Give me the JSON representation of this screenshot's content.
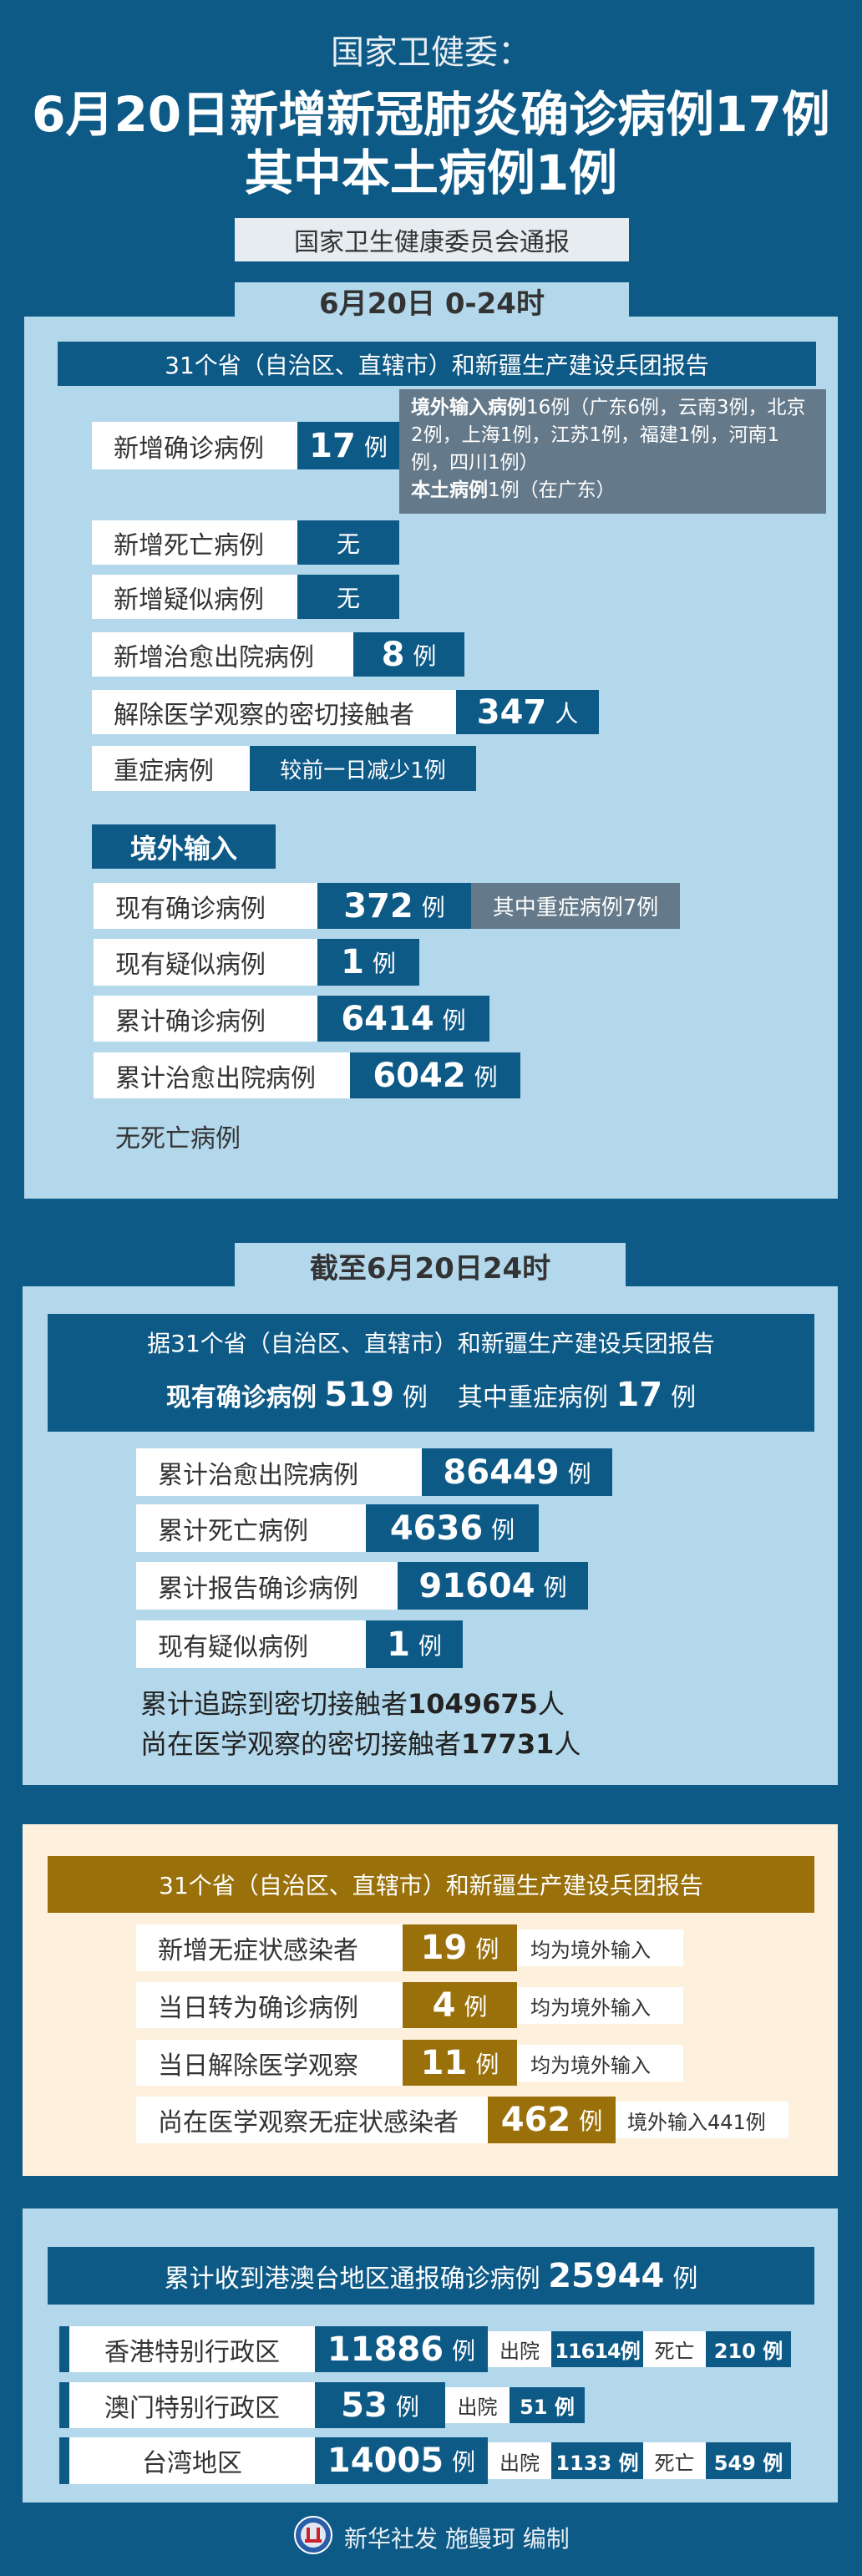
{
  "header": {
    "kicker": "国家卫健委：",
    "title_line1": "6月20日新增新冠肺炎确诊病例17例",
    "title_line2": "其中本土病例1例",
    "source": "国家卫生健康委员会通报"
  },
  "section1": {
    "tab": "6月20日  0-24时",
    "report_header": "31个省（自治区、直辖市）和新疆生产建设兵团报告",
    "rows": [
      {
        "label": "新增确诊病例",
        "value": "17",
        "unit": "例"
      },
      {
        "label": "新增死亡病例",
        "value": "无"
      },
      {
        "label": "新增疑似病例",
        "value": "无"
      },
      {
        "label": "新增治愈出院病例",
        "value": "8",
        "unit": "例"
      },
      {
        "label": "解除医学观察的密切接触者",
        "value": "347",
        "unit": "人"
      },
      {
        "label": "重症病例",
        "value": "较前一日减少1例"
      }
    ],
    "note": {
      "imported_label": "境外输入病例",
      "imported_text": "16例（广东6例，云南3例，北京2例，上海1例，江苏1例，福建1例，河南1例，四川1例）",
      "local_label": "本土病例",
      "local_text": "1例（在广东）"
    },
    "imported_header": "境外输入",
    "imported_rows": [
      {
        "label": "现有确诊病例",
        "value": "372",
        "unit": "例",
        "extra": "其中重症病例7例"
      },
      {
        "label": "现有疑似病例",
        "value": "1",
        "unit": "例"
      },
      {
        "label": "累计确诊病例",
        "value": "6414",
        "unit": "例"
      },
      {
        "label": "累计治愈出院病例",
        "value": "6042",
        "unit": "例"
      }
    ],
    "no_death": "无死亡病例"
  },
  "section2": {
    "tab": "截至6月20日24时",
    "report_header": "据31个省（自治区、直辖市）和新疆生产建设兵团报告",
    "current_label": "现有确诊病例",
    "current_value": "519",
    "current_unit": "例",
    "severe_label": "其中重症病例",
    "severe_value": "17",
    "severe_unit": "例",
    "rows": [
      {
        "label": "累计治愈出院病例",
        "value": "86449",
        "unit": "例"
      },
      {
        "label": "累计死亡病例",
        "value": "4636",
        "unit": "例"
      },
      {
        "label": "累计报告确诊病例",
        "value": "91604",
        "unit": "例"
      },
      {
        "label": "现有疑似病例",
        "value": "1",
        "unit": "例"
      }
    ],
    "contacts_label": "累计追踪到密切接触者",
    "contacts_value": "1049675",
    "contacts_unit": "人",
    "observing_label": "尚在医学观察的密切接触者",
    "observing_value": "17731",
    "observing_unit": "人"
  },
  "section3": {
    "report_header": "31个省（自治区、直辖市）和新疆生产建设兵团报告",
    "rows": [
      {
        "label": "新增无症状感染者",
        "value": "19",
        "unit": "例",
        "note": "均为境外输入"
      },
      {
        "label": "当日转为确诊病例",
        "value": "4",
        "unit": "例",
        "note": "均为境外输入"
      },
      {
        "label": "当日解除医学观察",
        "value": "11",
        "unit": "例",
        "note": "均为境外输入"
      },
      {
        "label": "尚在医学观察无症状感染者",
        "value": "462",
        "unit": "例",
        "note": "境外输入441例"
      }
    ]
  },
  "section4": {
    "header_label": "累计收到港澳台地区通报确诊病例",
    "header_value": "25944",
    "header_unit": "例",
    "rows": [
      {
        "label": "香港特别行政区",
        "value": "11886",
        "unit": "例",
        "discharged_label": "出院",
        "discharged": "11614例",
        "death_label": "死亡",
        "deaths": "210 例"
      },
      {
        "label": "澳门特别行政区",
        "value": "53",
        "unit": "例",
        "discharged_label": "出院",
        "discharged": "51 例"
      },
      {
        "label": "台湾地区",
        "value": "14005",
        "unit": "例",
        "discharged_label": "出院",
        "discharged": "1133 例",
        "death_label": "死亡",
        "deaths": "549 例"
      }
    ]
  },
  "footer": {
    "credit": "新华社发 施鳗珂 编制",
    "logo_text": "XINHUA"
  },
  "colors": {
    "background": "#0e5a87",
    "panel": "#b3d8ec",
    "note_gray": "#64798a",
    "gold": "#9a700a",
    "cream": "#fdf0dc"
  }
}
